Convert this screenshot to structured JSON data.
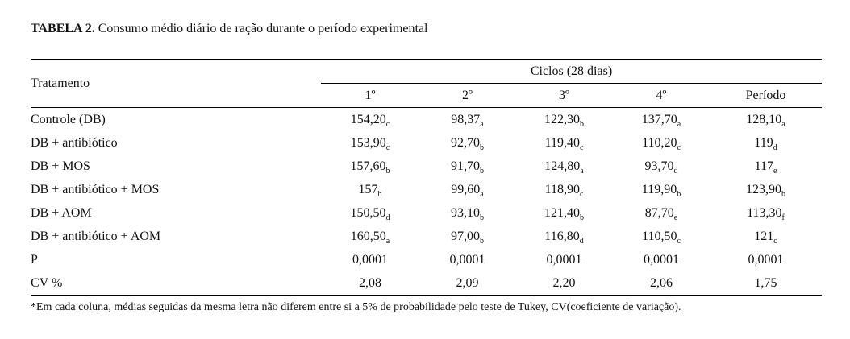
{
  "title": {
    "label": "TABELA 2.",
    "text": "Consumo médio diário de ração durante o período experimental"
  },
  "header": {
    "tratamento": "Tratamento",
    "group": "Ciclos (28 dias)",
    "columns": [
      "1º",
      "2º",
      "3º",
      "4º",
      "Período"
    ]
  },
  "rows": [
    {
      "label": "Controle (DB)",
      "cells": [
        [
          "154,20",
          "c"
        ],
        [
          "98,37",
          "a"
        ],
        [
          "122,30",
          "b"
        ],
        [
          "137,70",
          "a"
        ],
        [
          "128,10",
          "a"
        ]
      ]
    },
    {
      "label": "DB + antibiótico",
      "cells": [
        [
          "153,90",
          "c"
        ],
        [
          "92,70",
          "b"
        ],
        [
          "119,40",
          "c"
        ],
        [
          "110,20",
          "c"
        ],
        [
          "119",
          "d"
        ]
      ]
    },
    {
      "label": "DB + MOS",
      "cells": [
        [
          "157,60",
          "b"
        ],
        [
          "91,70",
          "b"
        ],
        [
          "124,80",
          "a"
        ],
        [
          "93,70",
          "d"
        ],
        [
          "117",
          "e"
        ]
      ]
    },
    {
      "label": "DB + antibiótico + MOS",
      "cells": [
        [
          "157",
          "b"
        ],
        [
          "99,60",
          "a"
        ],
        [
          "118,90",
          "c"
        ],
        [
          "119,90",
          "b"
        ],
        [
          "123,90",
          "b"
        ]
      ]
    },
    {
      "label": "DB + AOM",
      "cells": [
        [
          "150,50",
          "d"
        ],
        [
          "93,10",
          "b"
        ],
        [
          "121,40",
          "b"
        ],
        [
          "87,70",
          "e"
        ],
        [
          "113,30",
          "f"
        ]
      ]
    },
    {
      "label": "DB + antibiótico + AOM",
      "cells": [
        [
          "160,50",
          "a"
        ],
        [
          "97,00",
          "b"
        ],
        [
          "116,80",
          "d"
        ],
        [
          "110,50",
          "c"
        ],
        [
          "121",
          "c"
        ]
      ]
    },
    {
      "label": "P",
      "cells": [
        [
          "0,0001",
          ""
        ],
        [
          "0,0001",
          ""
        ],
        [
          "0,0001",
          ""
        ],
        [
          "0,0001",
          ""
        ],
        [
          "0,0001",
          ""
        ]
      ]
    },
    {
      "label": "CV %",
      "cells": [
        [
          "2,08",
          ""
        ],
        [
          "2,09",
          ""
        ],
        [
          "2,20",
          ""
        ],
        [
          "2,06",
          ""
        ],
        [
          "1,75",
          ""
        ]
      ]
    }
  ],
  "footnote": "*Em cada coluna, médias seguidas da mesma letra não diferem entre si a 5% de probabilidade pelo teste de Tukey, CV(coeficiente de variação)."
}
